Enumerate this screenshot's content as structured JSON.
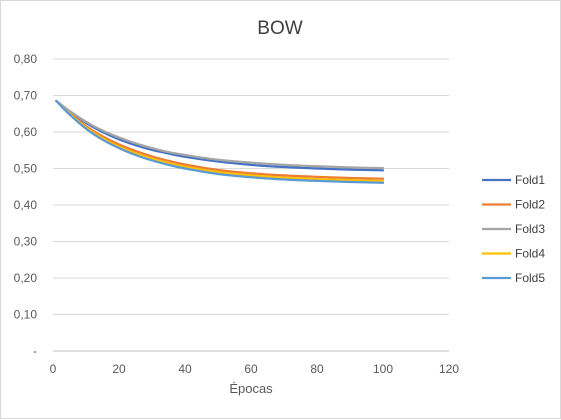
{
  "chart_data": {
    "type": "line",
    "title": "BOW",
    "xlabel": "Épocas",
    "ylabel": "",
    "xlim": [
      0,
      120
    ],
    "ylim": [
      0,
      0.8
    ],
    "x_ticks": [
      0,
      20,
      40,
      60,
      80,
      100,
      120
    ],
    "x_tick_labels": [
      "0",
      "20",
      "40",
      "60",
      "80",
      "100",
      "120"
    ],
    "y_ticks": [
      0,
      0.1,
      0.2,
      0.3,
      0.4,
      0.5,
      0.6,
      0.7,
      0.8
    ],
    "y_tick_labels": [
      "-",
      "0,10",
      "0,20",
      "0,30",
      "0,40",
      "0,50",
      "0,60",
      "0,70",
      "0,80"
    ],
    "grid": "horizontal",
    "legend_position": "right",
    "x": [
      1,
      5,
      10,
      15,
      20,
      25,
      30,
      35,
      40,
      50,
      60,
      70,
      80,
      90,
      100
    ],
    "series": [
      {
        "name": "Fold1",
        "color": "#4472C4",
        "values": [
          0.685,
          0.657,
          0.625,
          0.6,
          0.58,
          0.564,
          0.551,
          0.541,
          0.532,
          0.519,
          0.51,
          0.504,
          0.5,
          0.497,
          0.495
        ]
      },
      {
        "name": "Fold2",
        "color": "#ED7D31",
        "values": [
          0.685,
          0.652,
          0.616,
          0.588,
          0.566,
          0.548,
          0.533,
          0.521,
          0.511,
          0.496,
          0.487,
          0.481,
          0.477,
          0.474,
          0.472
        ]
      },
      {
        "name": "Fold3",
        "color": "#A5A5A5",
        "values": [
          0.685,
          0.658,
          0.628,
          0.604,
          0.585,
          0.569,
          0.556,
          0.545,
          0.537,
          0.524,
          0.516,
          0.51,
          0.506,
          0.503,
          0.501
        ]
      },
      {
        "name": "Fold4",
        "color": "#FFC000",
        "values": [
          0.685,
          0.65,
          0.612,
          0.583,
          0.56,
          0.542,
          0.527,
          0.515,
          0.505,
          0.49,
          0.481,
          0.475,
          0.471,
          0.468,
          0.466
        ]
      },
      {
        "name": "Fold5",
        "color": "#5B9BD5",
        "values": [
          0.685,
          0.648,
          0.609,
          0.579,
          0.556,
          0.537,
          0.522,
          0.51,
          0.5,
          0.485,
          0.476,
          0.47,
          0.466,
          0.463,
          0.461
        ]
      }
    ]
  }
}
